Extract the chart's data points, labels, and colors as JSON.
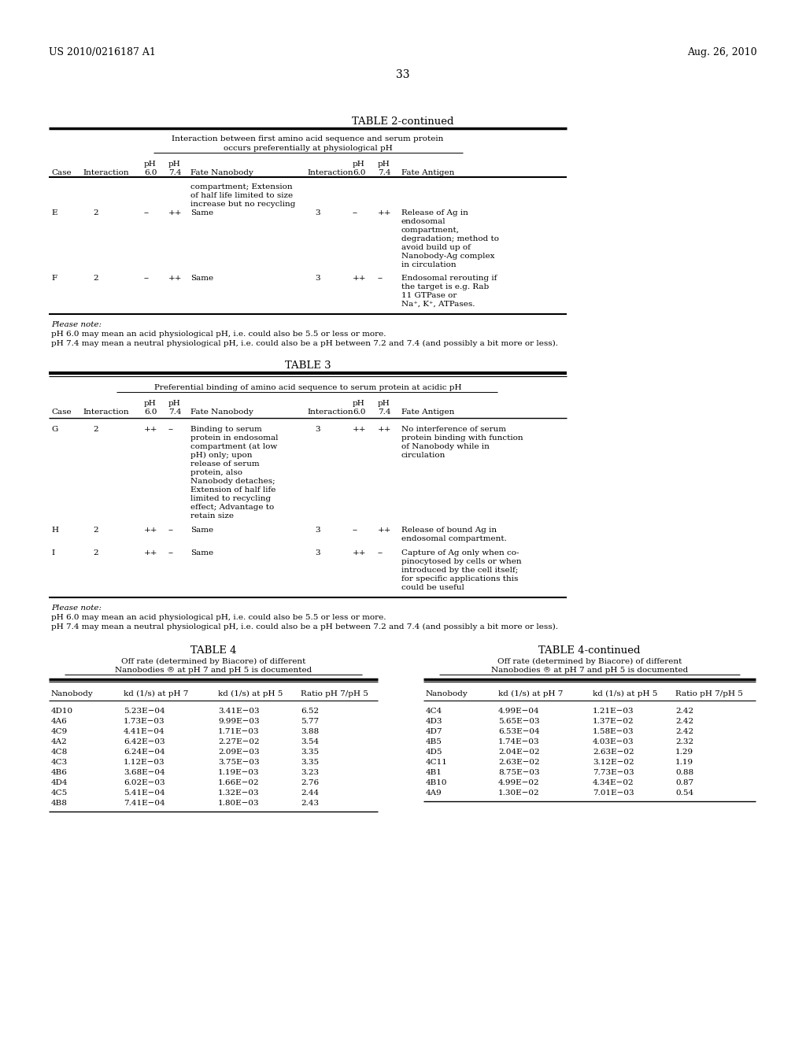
{
  "header_left": "US 2010/0216187 A1",
  "header_right": "Aug. 26, 2010",
  "page_number": "33",
  "bg_color": "#ffffff",
  "table2_title": "TABLE 2-continued",
  "table2_subtitle_line1": "Interaction between first amino acid sequence and serum protein",
  "table2_subtitle_line2": "occurs preferentially at physiological pH",
  "table3_title": "TABLE 3",
  "table3_subtitle": "Preferential binding of amino acid sequence to serum protein at acidic pH",
  "table4_title": "TABLE 4",
  "table4_subtitle1": "Off rate (determined by Biacore) of different",
  "table4_subtitle2": "Nanobodies ® at pH 7 and pH 5 is documented",
  "table4_col_headers": [
    "Nanobody",
    "kd (1/s) at pH 7",
    "kd (1/s) at pH 5",
    "Ratio pH 7/pH 5"
  ],
  "table4_data": [
    [
      "4D10",
      "5.23E−04",
      "3.41E−03",
      "6.52"
    ],
    [
      "4A6",
      "1.73E−03",
      "9.99E−03",
      "5.77"
    ],
    [
      "4C9",
      "4.41E−04",
      "1.71E−03",
      "3.88"
    ],
    [
      "4A2",
      "6.42E−03",
      "2.27E−02",
      "3.54"
    ],
    [
      "4C8",
      "6.24E−04",
      "2.09E−03",
      "3.35"
    ],
    [
      "4C3",
      "1.12E−03",
      "3.75E−03",
      "3.35"
    ],
    [
      "4B6",
      "3.68E−04",
      "1.19E−03",
      "3.23"
    ],
    [
      "4D4",
      "6.02E−03",
      "1.66E−02",
      "2.76"
    ],
    [
      "4C5",
      "5.41E−04",
      "1.32E−03",
      "2.44"
    ],
    [
      "4B8",
      "7.41E−04",
      "1.80E−03",
      "2.43"
    ]
  ],
  "table4c_title": "TABLE 4-continued",
  "table4c_subtitle1": "Off rate (determined by Biacore) of different",
  "table4c_subtitle2": "Nanobodies ® at pH 7 and pH 5 is documented",
  "table4c_col_headers": [
    "Nanobody",
    "kd (1/s) at pH 7",
    "kd (1/s) at pH 5",
    "Ratio pH 7/pH 5"
  ],
  "table4c_data": [
    [
      "4C4",
      "4.99E−04",
      "1.21E−03",
      "2.42"
    ],
    [
      "4D3",
      "5.65E−03",
      "1.37E−02",
      "2.42"
    ],
    [
      "4D7",
      "6.53E−04",
      "1.58E−03",
      "2.42"
    ],
    [
      "4B5",
      "1.74E−03",
      "4.03E−03",
      "2.32"
    ],
    [
      "4D5",
      "2.04E−02",
      "2.63E−02",
      "1.29"
    ],
    [
      "4C11",
      "2.63E−02",
      "3.12E−02",
      "1.19"
    ],
    [
      "4B1",
      "8.75E−03",
      "7.73E−03",
      "0.88"
    ],
    [
      "4B10",
      "4.99E−02",
      "4.34E−02",
      "0.87"
    ],
    [
      "4A9",
      "1.30E−02",
      "7.01E−03",
      "0.54"
    ]
  ],
  "note1": "Please note:",
  "note2": "pH 6.0 may mean an acid physiological pH, i.e. could also be 5.5 or less or more.",
  "note3": "pH 7.4 may mean a neutral physiological pH, i.e. could also be a pH between 7.2 and 7.4 (and possibly a bit more or less)."
}
